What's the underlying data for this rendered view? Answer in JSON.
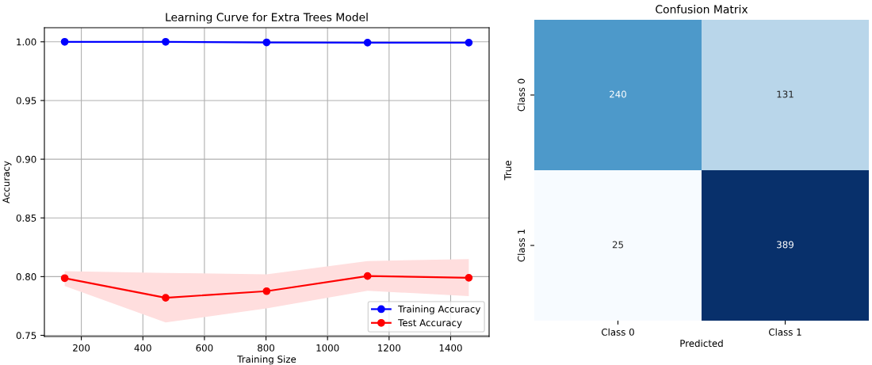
{
  "chart_data": [
    {
      "type": "line",
      "title": "Learning Curve for Extra Trees Model",
      "xlabel": "Training Size",
      "ylabel": "Accuracy",
      "x": [
        146,
        474,
        802,
        1130,
        1459
      ],
      "series": [
        {
          "name": "Training Accuracy",
          "color": "#0000ff",
          "values": [
            1.0,
            1.0,
            0.9995,
            0.9993,
            0.9993
          ]
        },
        {
          "name": "Test Accuracy",
          "color": "#ff0000",
          "values": [
            0.7987,
            0.782,
            0.7876,
            0.8005,
            0.799
          ],
          "lower": [
            0.792,
            0.761,
            0.773,
            0.788,
            0.7834
          ],
          "upper": [
            0.8047,
            0.8032,
            0.802,
            0.8132,
            0.815
          ]
        }
      ],
      "xlim": [
        80,
        1525
      ],
      "xticks": [
        200,
        400,
        600,
        800,
        1000,
        1200,
        1400
      ],
      "ylim": [
        0.749,
        1.012
      ],
      "yticks": [
        {
          "value": 0.75,
          "label": "0.75"
        },
        {
          "value": 0.8,
          "label": "0.80"
        },
        {
          "value": 0.85,
          "label": "0.85"
        },
        {
          "value": 0.9,
          "label": "0.90"
        },
        {
          "value": 0.95,
          "label": "0.95"
        },
        {
          "value": 1.0,
          "label": "1.00"
        }
      ],
      "grid": true,
      "legend": "bottom right",
      "marker": "circle",
      "line_style": "solid"
    },
    {
      "type": "heatmap",
      "title": "Confusion Matrix",
      "xlabel": "Predicted",
      "ylabel": "True",
      "categories": [
        "Class 0",
        "Class 1"
      ],
      "y_categories": [
        "Class 0",
        "Class 1"
      ],
      "cells": [
        [
          240,
          131
        ],
        [
          25,
          389
        ]
      ],
      "data_labels": true
    }
  ]
}
